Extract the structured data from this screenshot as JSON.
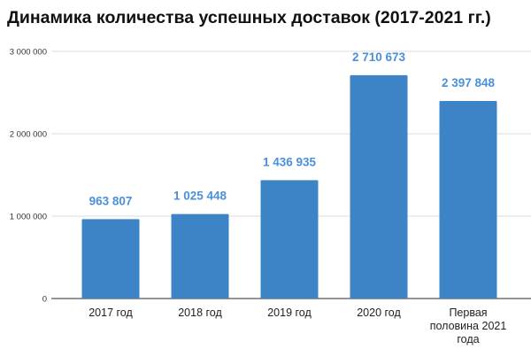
{
  "chart_data": {
    "type": "bar",
    "title": "Динамика количества успешных доставок (2017-2021 гг.)",
    "xlabel": "",
    "ylabel": "",
    "categories": [
      "2017 год",
      "2018 год",
      "2019 год",
      "2020 год",
      "Первая половина 2021 года"
    ],
    "category_lines": [
      [
        "2017 год"
      ],
      [
        "2018 год"
      ],
      [
        "2019 год"
      ],
      [
        "2020 год"
      ],
      [
        "Первая",
        "половина 2021",
        "года"
      ]
    ],
    "values": [
      963807,
      1025448,
      1436935,
      2710673,
      2397848
    ],
    "data_labels": [
      "963 807",
      "1 025 448",
      "1 436 935",
      "2 710 673",
      "2 397 848"
    ],
    "ylim": [
      0,
      3000000
    ],
    "yticks": [
      0,
      1000000,
      2000000,
      3000000
    ],
    "ytick_labels": [
      "0",
      "1 000 000",
      "2 000 000",
      "3 000 000"
    ],
    "grid": true,
    "legend": "none",
    "colors": {
      "bar": "#3d84c6",
      "data_label": "#4a90d9",
      "grid": "#dddddd",
      "axis": "#555555"
    }
  }
}
